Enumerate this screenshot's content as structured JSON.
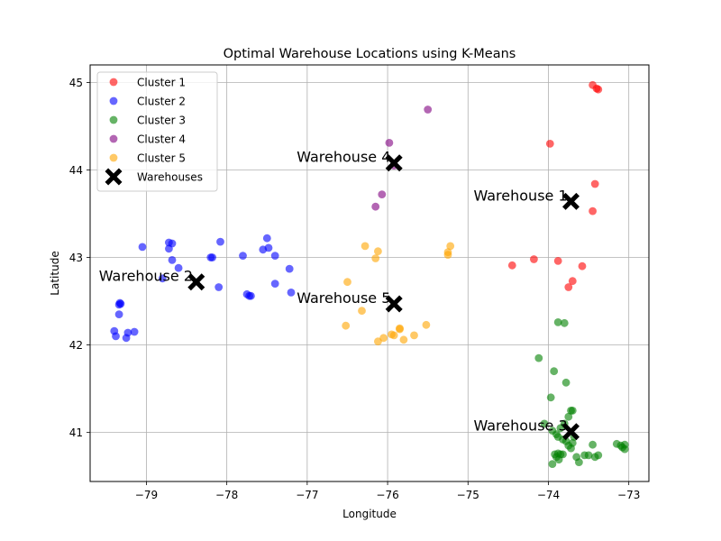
{
  "chart_data": {
    "type": "scatter",
    "title": "Optimal Warehouse Locations using K-Means",
    "xlabel": "Longitude",
    "ylabel": "Latitude",
    "xlim": [
      -79.7,
      -72.75
    ],
    "ylim": [
      40.44,
      45.2
    ],
    "xticks": [
      -79,
      -78,
      -77,
      -76,
      -75,
      -74,
      -73
    ],
    "yticks": [
      41,
      42,
      43,
      44,
      45
    ],
    "grid": true,
    "legend_position": "top-left",
    "series": [
      {
        "name": "Cluster 1",
        "color": "#ff0000",
        "points": [
          [
            -73.45,
            44.97
          ],
          [
            -73.4,
            44.93
          ],
          [
            -73.38,
            44.92
          ],
          [
            -73.98,
            44.3
          ],
          [
            -73.42,
            43.84
          ],
          [
            -73.45,
            43.53
          ],
          [
            -74.45,
            42.91
          ],
          [
            -74.18,
            42.98
          ],
          [
            -73.88,
            42.96
          ],
          [
            -73.58,
            42.9
          ],
          [
            -73.7,
            42.73
          ],
          [
            -73.75,
            42.66
          ]
        ]
      },
      {
        "name": "Cluster 2",
        "color": "#0000ff",
        "points": [
          [
            -79.05,
            43.12
          ],
          [
            -78.72,
            43.17
          ],
          [
            -78.68,
            43.16
          ],
          [
            -78.72,
            43.1
          ],
          [
            -78.68,
            42.97
          ],
          [
            -78.6,
            42.88
          ],
          [
            -78.8,
            42.76
          ],
          [
            -78.2,
            43.0
          ],
          [
            -78.18,
            43.0
          ],
          [
            -78.08,
            43.18
          ],
          [
            -77.8,
            43.02
          ],
          [
            -77.5,
            43.22
          ],
          [
            -77.55,
            43.09
          ],
          [
            -77.48,
            43.11
          ],
          [
            -77.4,
            43.02
          ],
          [
            -77.22,
            42.87
          ],
          [
            -77.4,
            42.7
          ],
          [
            -77.2,
            42.6
          ],
          [
            -78.1,
            42.66
          ],
          [
            -77.75,
            42.58
          ],
          [
            -77.72,
            42.56
          ],
          [
            -77.7,
            42.56
          ],
          [
            -79.33,
            42.48
          ],
          [
            -79.34,
            42.46
          ],
          [
            -79.32,
            42.47
          ],
          [
            -79.34,
            42.35
          ],
          [
            -79.4,
            42.16
          ],
          [
            -79.38,
            42.1
          ],
          [
            -79.23,
            42.14
          ],
          [
            -79.25,
            42.08
          ],
          [
            -79.15,
            42.15
          ]
        ]
      },
      {
        "name": "Cluster 3",
        "color": "#008000",
        "points": [
          [
            -73.88,
            42.26
          ],
          [
            -73.8,
            42.25
          ],
          [
            -74.12,
            41.85
          ],
          [
            -73.93,
            41.7
          ],
          [
            -73.78,
            41.57
          ],
          [
            -73.97,
            41.4
          ],
          [
            -74.05,
            41.1
          ],
          [
            -73.72,
            41.25
          ],
          [
            -73.7,
            41.25
          ],
          [
            -73.75,
            41.18
          ],
          [
            -73.8,
            41.1
          ],
          [
            -73.85,
            41.05
          ],
          [
            -73.95,
            41.02
          ],
          [
            -73.9,
            40.98
          ],
          [
            -73.88,
            40.95
          ],
          [
            -73.82,
            40.92
          ],
          [
            -73.78,
            40.9
          ],
          [
            -73.7,
            40.88
          ],
          [
            -73.68,
            40.95
          ],
          [
            -73.75,
            40.85
          ],
          [
            -73.72,
            40.82
          ],
          [
            -73.92,
            40.75
          ],
          [
            -73.88,
            40.76
          ],
          [
            -73.85,
            40.75
          ],
          [
            -73.82,
            40.75
          ],
          [
            -73.9,
            40.72
          ],
          [
            -73.87,
            40.69
          ],
          [
            -73.95,
            40.64
          ],
          [
            -73.65,
            40.72
          ],
          [
            -73.62,
            40.66
          ],
          [
            -73.55,
            40.74
          ],
          [
            -73.5,
            40.74
          ],
          [
            -73.45,
            40.86
          ],
          [
            -73.42,
            40.72
          ],
          [
            -73.38,
            40.74
          ],
          [
            -73.15,
            40.87
          ],
          [
            -73.1,
            40.85
          ],
          [
            -73.08,
            40.83
          ],
          [
            -73.05,
            40.86
          ],
          [
            -73.05,
            40.81
          ]
        ]
      },
      {
        "name": "Cluster 4",
        "color": "#800080",
        "points": [
          [
            -75.5,
            44.69
          ],
          [
            -75.98,
            44.31
          ],
          [
            -75.92,
            44.05
          ],
          [
            -76.07,
            43.72
          ],
          [
            -76.15,
            43.58
          ]
        ]
      },
      {
        "name": "Cluster 5",
        "color": "#ffa500",
        "points": [
          [
            -76.28,
            43.13
          ],
          [
            -76.12,
            43.07
          ],
          [
            -76.15,
            42.99
          ],
          [
            -75.22,
            43.13
          ],
          [
            -75.25,
            43.06
          ],
          [
            -75.25,
            43.03
          ],
          [
            -76.5,
            42.72
          ],
          [
            -76.32,
            42.39
          ],
          [
            -76.52,
            42.22
          ],
          [
            -75.52,
            42.23
          ],
          [
            -75.85,
            42.18
          ],
          [
            -75.85,
            42.19
          ],
          [
            -75.95,
            42.12
          ],
          [
            -75.92,
            42.11
          ],
          [
            -76.05,
            42.08
          ],
          [
            -75.67,
            42.11
          ],
          [
            -76.12,
            42.04
          ],
          [
            -75.8,
            42.06
          ]
        ]
      }
    ],
    "warehouses": {
      "name": "Warehouses",
      "color": "#000000",
      "points": [
        {
          "label": "Warehouse 1",
          "x": -73.72,
          "y": 43.64
        },
        {
          "label": "Warehouse 2",
          "x": -78.38,
          "y": 42.72
        },
        {
          "label": "Warehouse 3",
          "x": -73.72,
          "y": 41.01
        },
        {
          "label": "Warehouse 4",
          "x": -75.92,
          "y": 44.08
        },
        {
          "label": "Warehouse 5",
          "x": -75.92,
          "y": 42.47
        }
      ]
    }
  }
}
